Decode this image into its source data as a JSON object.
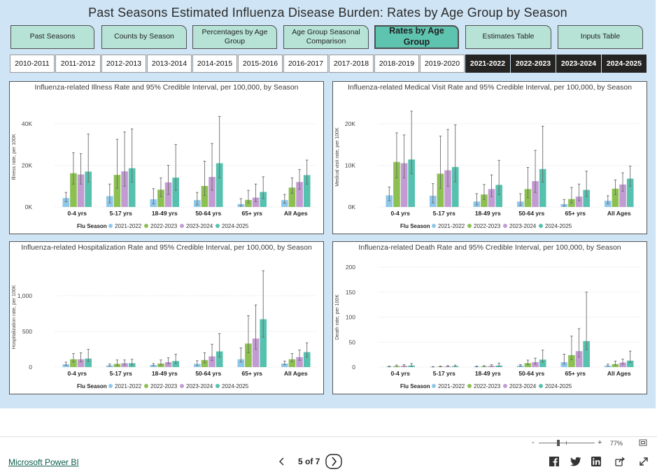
{
  "title": "Past Seasons Estimated Influenza Disease Burden: Rates by Age Group by Season",
  "nav_tabs": [
    {
      "label": "Past Seasons",
      "active": false
    },
    {
      "label": "Counts by Season",
      "active": false
    },
    {
      "label": "Percentages by Age Group",
      "active": false
    },
    {
      "label": "Age Group Seasonal Comparison",
      "active": false
    },
    {
      "label": "Rates by Age Group",
      "active": true
    },
    {
      "label": "Estimates Table",
      "active": false
    },
    {
      "label": "Inputs Table",
      "active": false
    }
  ],
  "season_buttons": [
    {
      "label": "2010-2011",
      "selected": false
    },
    {
      "label": "2011-2012",
      "selected": false
    },
    {
      "label": "2012-2013",
      "selected": false
    },
    {
      "label": "2013-2014",
      "selected": false
    },
    {
      "label": "2014-2015",
      "selected": false
    },
    {
      "label": "2015-2016",
      "selected": false
    },
    {
      "label": "2016-2017",
      "selected": false
    },
    {
      "label": "2017-2018",
      "selected": false
    },
    {
      "label": "2018-2019",
      "selected": false
    },
    {
      "label": "2019-2020",
      "selected": false
    },
    {
      "label": "2021-2022",
      "selected": true
    },
    {
      "label": "2022-2023",
      "selected": true
    },
    {
      "label": "2023-2024",
      "selected": true
    },
    {
      "label": "2024-2025",
      "selected": true
    }
  ],
  "colors": {
    "canvas": "#cfe4f4",
    "tab": "#b7e3d7",
    "tab_active": "#5ec4b0",
    "selected_season": "#252423",
    "series": [
      "#8ec7ea",
      "#8cc152",
      "#c39bd3",
      "#56c1ae"
    ],
    "error_bar": "#6b6b6b"
  },
  "chart_data": [
    {
      "type": "bar",
      "title": "Influenza-related Illness Rate and 95% Credible Interval, per 100,000, by Season",
      "ylabel": "Illness rate, per 100K",
      "ylim": [
        0,
        48000
      ],
      "yticks": [
        0,
        20000,
        40000
      ],
      "ytick_labels": [
        "0K",
        "20K",
        "40K"
      ],
      "categories": [
        "0-4 yrs",
        "5-17 yrs",
        "18-49 yrs",
        "50-64 yrs",
        "65+ yrs",
        "All Ages"
      ],
      "legend_title": "Flu Season",
      "legend_position": "bottom",
      "series": [
        {
          "name": "2021-2022",
          "values": [
            4300,
            5200,
            3700,
            3300,
            1400,
            3300
          ],
          "lower": [
            2500,
            2000,
            1500,
            1000,
            400,
            1800
          ],
          "upper": [
            7000,
            11000,
            8800,
            7000,
            4000,
            6000
          ]
        },
        {
          "name": "2022-2023",
          "values": [
            16200,
            15400,
            8300,
            10100,
            3400,
            9300
          ],
          "lower": [
            11000,
            9000,
            5000,
            5500,
            2000,
            6500
          ],
          "upper": [
            26000,
            32500,
            14000,
            22000,
            8000,
            14000
          ]
        },
        {
          "name": "2023-2024",
          "values": [
            15600,
            17100,
            11800,
            14400,
            4500,
            12000
          ],
          "lower": [
            11000,
            10000,
            6000,
            8000,
            2500,
            8500
          ],
          "upper": [
            25600,
            36000,
            20000,
            30500,
            11000,
            18000
          ]
        },
        {
          "name": "2024-2025",
          "values": [
            17000,
            18600,
            14100,
            21000,
            7200,
            15300
          ],
          "lower": [
            12000,
            12000,
            8000,
            14000,
            4000,
            11000
          ],
          "upper": [
            35000,
            37500,
            30000,
            43500,
            14500,
            22500
          ]
        }
      ]
    },
    {
      "type": "bar",
      "title": "Influenza-related Medical Visit Rate and 95% Credible Interval, per 100,000, by Season",
      "ylabel": "Medical visit rate, per 100K",
      "ylim": [
        0,
        24000
      ],
      "yticks": [
        0,
        10000,
        20000
      ],
      "ytick_labels": [
        "0K",
        "10K",
        "20K"
      ],
      "categories": [
        "0-4 yrs",
        "5-17 yrs",
        "18-49 yrs",
        "50-64 yrs",
        "65+ yrs",
        "All Ages"
      ],
      "legend_title": "Flu Season",
      "legend_position": "bottom",
      "series": [
        {
          "name": "2021-2022",
          "values": [
            2800,
            2700,
            1300,
            1300,
            700,
            1500
          ],
          "lower": [
            1500,
            1000,
            500,
            400,
            200,
            800
          ],
          "upper": [
            4800,
            5600,
            3200,
            3200,
            1800,
            2700
          ]
        },
        {
          "name": "2022-2023",
          "values": [
            10800,
            8000,
            3000,
            4300,
            1900,
            4400
          ],
          "lower": [
            7000,
            4500,
            1800,
            2200,
            1000,
            3000
          ],
          "upper": [
            17800,
            17000,
            5400,
            9500,
            4700,
            6500
          ]
        },
        {
          "name": "2023-2024",
          "values": [
            10500,
            8800,
            4300,
            6200,
            2500,
            5400
          ],
          "lower": [
            7000,
            5000,
            2500,
            3500,
            1500,
            3800
          ],
          "upper": [
            17300,
            18600,
            7700,
            13600,
            5500,
            8200
          ]
        },
        {
          "name": "2024-2025",
          "values": [
            11400,
            9600,
            5300,
            9100,
            4100,
            6800
          ],
          "lower": [
            8000,
            6000,
            3000,
            6000,
            2500,
            5000
          ],
          "upper": [
            23000,
            19700,
            11200,
            19400,
            8600,
            9800
          ]
        }
      ]
    },
    {
      "type": "bar",
      "title": "Influenza-related Hospitalization Rate and 95% Credible Interval, per 100,000, by Season",
      "ylabel": "Hospitalization rate, per 100K",
      "ylim": [
        0,
        1400
      ],
      "yticks": [
        0,
        500,
        1000
      ],
      "ytick_labels": [
        "0",
        "500",
        "1,000"
      ],
      "categories": [
        "0-4 yrs",
        "5-17 yrs",
        "18-49 yrs",
        "50-64 yrs",
        "65+ yrs",
        "All Ages"
      ],
      "legend_title": "Flu Season",
      "legend_position": "bottom",
      "series": [
        {
          "name": "2021-2022",
          "values": [
            40,
            25,
            30,
            45,
            110,
            50
          ],
          "lower": [
            25,
            15,
            20,
            25,
            70,
            35
          ],
          "upper": [
            70,
            45,
            50,
            90,
            270,
            85
          ]
        },
        {
          "name": "2022-2023",
          "values": [
            110,
            45,
            50,
            100,
            330,
            110
          ],
          "lower": [
            70,
            25,
            30,
            60,
            200,
            75
          ],
          "upper": [
            190,
            100,
            100,
            200,
            720,
            190
          ]
        },
        {
          "name": "2023-2024",
          "values": [
            110,
            55,
            70,
            150,
            400,
            140
          ],
          "lower": [
            75,
            30,
            45,
            90,
            250,
            95
          ],
          "upper": [
            200,
            100,
            130,
            320,
            870,
            240
          ]
        },
        {
          "name": "2024-2025",
          "values": [
            120,
            55,
            85,
            220,
            670,
            210
          ],
          "lower": [
            80,
            30,
            55,
            140,
            420,
            140
          ],
          "upper": [
            250,
            110,
            180,
            470,
            1350,
            340
          ]
        }
      ]
    },
    {
      "type": "bar",
      "title": "Influenza-related Death Rate and 95% Credible Interval, per 100,000, by Season",
      "ylabel": "Death rate, per 100K",
      "ylim": [
        0,
        200
      ],
      "yticks": [
        0,
        50,
        100,
        150,
        200
      ],
      "ytick_labels": [
        "0",
        "50",
        "100",
        "150",
        "200"
      ],
      "categories": [
        "0-4 yrs",
        "5-17 yrs",
        "18-49 yrs",
        "50-64 yrs",
        "65+ yrs",
        "All Ages"
      ],
      "legend_title": "Flu Season",
      "legend_position": "bottom",
      "series": [
        {
          "name": "2021-2022",
          "values": [
            1,
            0.5,
            1,
            3,
            10,
            3
          ],
          "lower": [
            0.5,
            0.3,
            0.5,
            2,
            6,
            2
          ],
          "upper": [
            2,
            1,
            2,
            5,
            26,
            6
          ]
        },
        {
          "name": "2022-2023",
          "values": [
            2,
            1,
            1.5,
            8,
            24,
            6
          ],
          "lower": [
            1,
            0.5,
            1,
            5,
            15,
            4
          ],
          "upper": [
            4,
            2,
            3,
            14,
            62,
            12
          ]
        },
        {
          "name": "2023-2024",
          "values": [
            2.5,
            1.5,
            2.5,
            10,
            32,
            9
          ],
          "lower": [
            1.5,
            1,
            1.5,
            6,
            20,
            6
          ],
          "upper": [
            5,
            3,
            5,
            18,
            77,
            16
          ]
        },
        {
          "name": "2024-2025",
          "values": [
            3,
            2,
            3,
            15,
            52,
            13
          ],
          "lower": [
            2,
            1,
            2,
            10,
            35,
            9
          ],
          "upper": [
            7,
            4,
            8,
            34,
            150,
            32
          ]
        }
      ]
    }
  ],
  "footer": {
    "zoom_label": "77%",
    "zoom_minus": "-",
    "zoom_plus": "+",
    "zoom_level": 0.77,
    "powerbi_link": "Microsoft Power BI",
    "page_indicator": "5 of 7",
    "icons": [
      "chevron-left-icon",
      "chevron-right-icon",
      "facebook-icon",
      "twitter-icon",
      "linkedin-icon",
      "share-icon",
      "fullscreen-icon",
      "fit-page-icon"
    ]
  }
}
